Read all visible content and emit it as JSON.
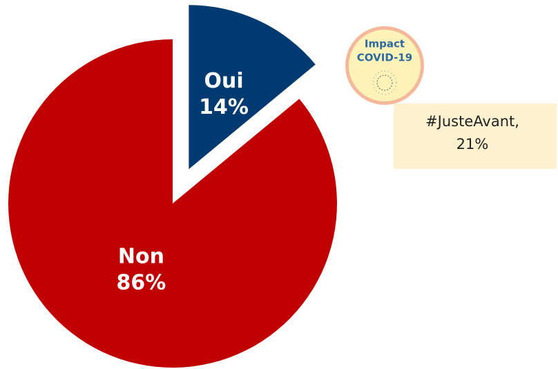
{
  "chart_data": {
    "type": "pie",
    "categories": [
      "Oui",
      "Non"
    ],
    "values": [
      14,
      86
    ],
    "value_labels": [
      "14%",
      "86%"
    ],
    "colors": [
      "#003a70",
      "#c00000"
    ],
    "explode": [
      true,
      false
    ],
    "badge": [
      "Impact",
      "COVID-19"
    ],
    "annotation": [
      "#JusteAvant,",
      "21%"
    ]
  }
}
